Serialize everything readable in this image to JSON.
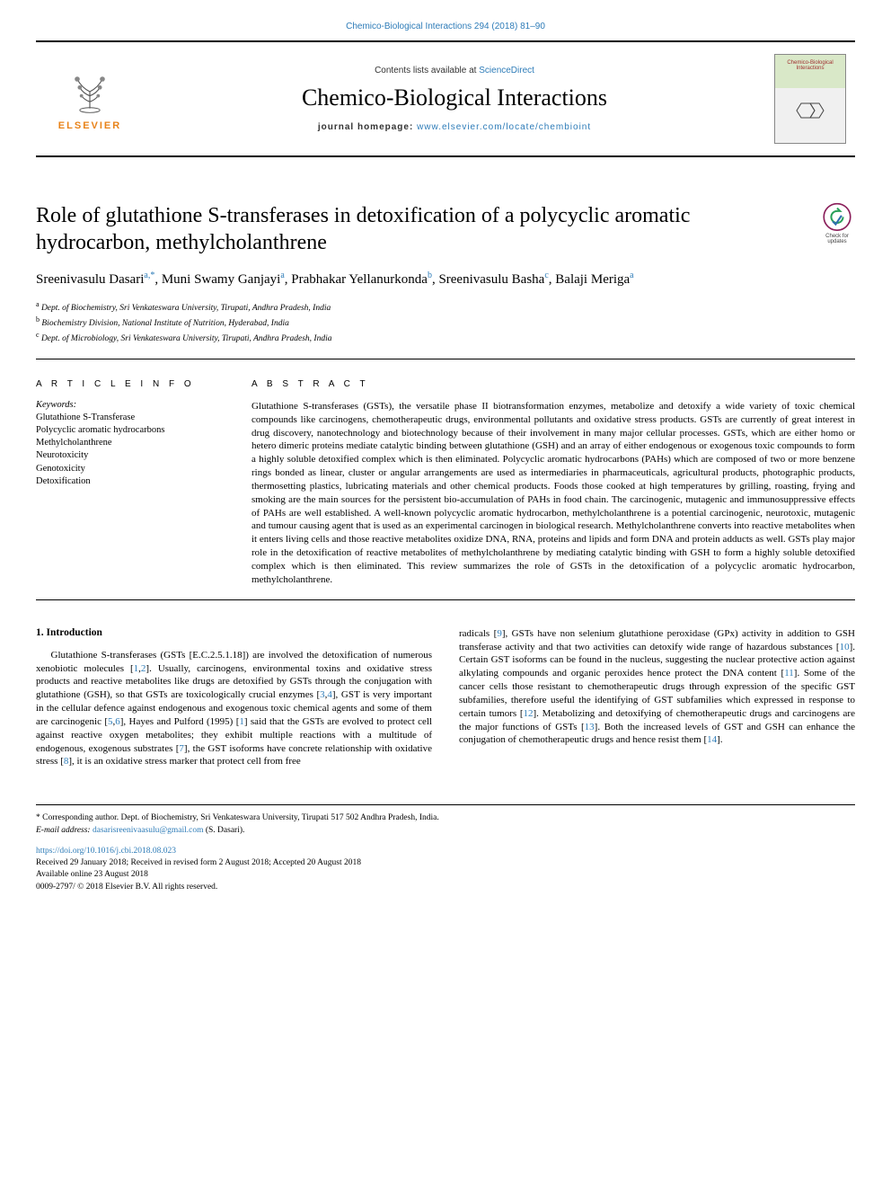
{
  "top_citation_link": "Chemico-Biological Interactions 294 (2018) 81–90",
  "header": {
    "contents_prefix": "Contents lists available at ",
    "contents_link": "ScienceDirect",
    "journal_name": "Chemico-Biological Interactions",
    "homepage_label": "journal homepage: ",
    "homepage_url": "www.elsevier.com/locate/chembioint",
    "publisher": "ELSEVIER",
    "cover_title": "Chemico-Biological Interactions"
  },
  "updates_badge": {
    "line1": "Check for",
    "line2": "updates"
  },
  "article": {
    "title": "Role of glutathione S-transferases in detoxification of a polycyclic aromatic hydrocarbon, methylcholanthrene",
    "authors_html": "Sreenivasulu Dasari<sup><a>a</a>,*</sup>, Muni Swamy Ganjayi<sup><a>a</a></sup>, Prabhakar Yellanurkonda<sup><a>b</a></sup>, Sreenivasulu Basha<sup><a>c</a></sup>, Balaji Meriga<sup><a>a</a></sup>",
    "affiliations": [
      {
        "sup": "a",
        "text": "Dept. of Biochemistry, Sri Venkateswara University, Tirupati, Andhra Pradesh, India"
      },
      {
        "sup": "b",
        "text": "Biochemistry Division, National Institute of Nutrition, Hyderabad, India"
      },
      {
        "sup": "c",
        "text": "Dept. of Microbiology, Sri Venkateswara University, Tirupati, Andhra Pradesh, India"
      }
    ],
    "article_info_label": "A R T I C L E  I N F O",
    "abstract_label": "A B S T R A C T",
    "keywords_label": "Keywords:",
    "keywords": [
      "Glutathione S-Transferase",
      "Polycyclic aromatic hydrocarbons",
      "Methylcholanthrene",
      "Neurotoxicity",
      "Genotoxicity",
      "Detoxification"
    ],
    "abstract": "Glutathione S-transferases (GSTs), the versatile phase II biotransformation enzymes, metabolize and detoxify a wide variety of toxic chemical compounds like carcinogens, chemotherapeutic drugs, environmental pollutants and oxidative stress products. GSTs are currently of great interest in drug discovery, nanotechnology and biotechnology because of their involvement in many major cellular processes. GSTs, which are either homo or hetero dimeric proteins mediate catalytic binding between glutathione (GSH) and an array of either endogenous or exogenous toxic compounds to form a highly soluble detoxified complex which is then eliminated. Polycyclic aromatic hydrocarbons (PAHs) which are composed of two or more benzene rings bonded as linear, cluster or angular arrangements are used as intermediaries in pharmaceuticals, agricultural products, photographic products, thermosetting plastics, lubricating materials and other chemical products. Foods those cooked at high temperatures by grilling, roasting, frying and smoking are the main sources for the persistent bio-accumulation of PAHs in food chain. The carcinogenic, mutagenic and immunosuppressive effects of PAHs are well established. A well-known polycyclic aromatic hydrocarbon, methylcholanthrene is a potential carcinogenic, neurotoxic, mutagenic and tumour causing agent that is used as an experimental carcinogen in biological research. Methylcholanthrene converts into reactive metabolites when it enters living cells and those reactive metabolites oxidize DNA, RNA, proteins and lipids and form DNA and protein adducts as well. GSTs play major role in the detoxification of reactive metabolites of methylcholanthrene by mediating catalytic binding with GSH to form a highly soluble detoxified complex which is then eliminated. This review summarizes the role of GSTs in the detoxification of a polycyclic aromatic hydrocarbon, methylcholanthrene."
  },
  "body": {
    "heading": "1. Introduction",
    "col1": "Glutathione S-transferases (GSTs [E.C.2.5.1.18]) are involved the detoxification of numerous xenobiotic molecules [<span class=\"ref-link\">1</span>,<span class=\"ref-link\">2</span>]. Usually, carcinogens, environmental toxins and oxidative stress products and reactive metabolites like drugs are detoxified by GSTs through the conjugation with glutathione (GSH), so that GSTs are toxicologically crucial enzymes [<span class=\"ref-link\">3</span>,<span class=\"ref-link\">4</span>], GST is very important in the cellular defence against endogenous and exogenous toxic chemical agents and some of them are carcinogenic [<span class=\"ref-link\">5</span>,<span class=\"ref-link\">6</span>], Hayes and Pulford (1995) [<span class=\"ref-link\">1</span>] said that the GSTs are evolved to protect cell against reactive oxygen metabolites; they exhibit multiple reactions with a multitude of endogenous, exogenous substrates [<span class=\"ref-link\">7</span>], the GST isoforms have concrete relationship with oxidative stress [<span class=\"ref-link\">8</span>], it is an oxidative stress marker that protect cell from free",
    "col2": "radicals [<span class=\"ref-link\">9</span>], GSTs have non selenium glutathione peroxidase (GPx) activity in addition to GSH transferase activity and that two activities can detoxify wide range of hazardous substances [<span class=\"ref-link\">10</span>]. Certain GST isoforms can be found in the nucleus, suggesting the nuclear protective action against alkylating compounds and organic peroxides hence protect the DNA content [<span class=\"ref-link\">11</span>]. Some of the cancer cells those resistant to chemotherapeutic drugs through expression of the specific GST subfamilies, therefore useful the identifying of GST subfamilies which expressed in response to certain tumors [<span class=\"ref-link\">12</span>]. Metabolizing and detoxifying of chemotherapeutic drugs and carcinogens are the major functions of GSTs [<span class=\"ref-link\">13</span>]. Both the increased levels of GST and GSH can enhance the conjugation of chemotherapeutic drugs and hence resist them [<span class=\"ref-link\">14</span>]."
  },
  "footer": {
    "corr": "* Corresponding author. Dept. of Biochemistry, Sri Venkateswara University, Tirupati 517 502 Andhra Pradesh, India.",
    "email_label": "E-mail address: ",
    "email": "dasarisreenivaasulu@gmail.com",
    "email_suffix": " (S. Dasari).",
    "doi": "https://doi.org/10.1016/j.cbi.2018.08.023",
    "received": "Received 29 January 2018; Received in revised form 2 August 2018; Accepted 20 August 2018",
    "available": "Available online 23 August 2018",
    "copyright": "0009-2797/ © 2018 Elsevier B.V. All rights reserved."
  },
  "colors": {
    "link": "#2e7cb8",
    "publisher_orange": "#e8831a",
    "text": "#000000",
    "background": "#ffffff",
    "cover_green": "#d9e8c8",
    "cover_gray": "#f0f0f0"
  }
}
